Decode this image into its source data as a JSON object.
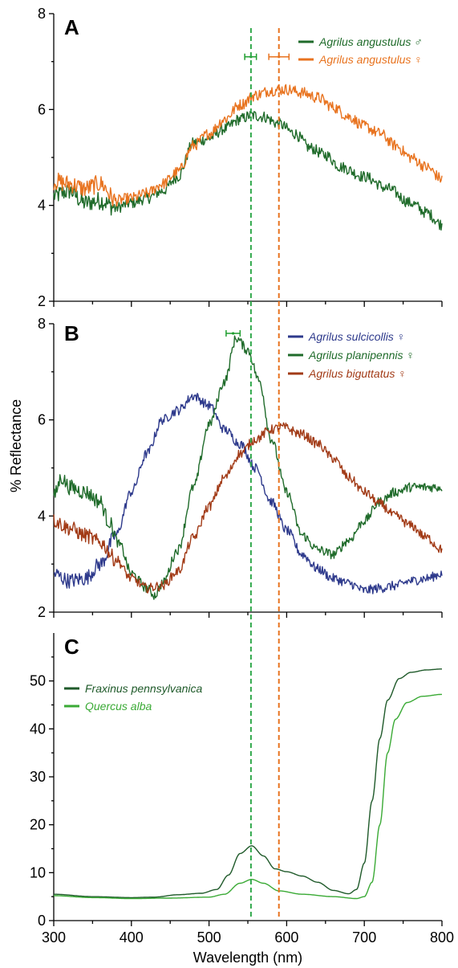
{
  "chart_data": [
    {
      "panel": "A",
      "type": "line",
      "xlim": [
        300,
        800
      ],
      "ylim": [
        2,
        8
      ],
      "yticks": [
        "2",
        "4",
        "6",
        "8"
      ],
      "noise": 0.12,
      "series": [
        {
          "name": "Agrilus angustulus ♂",
          "color": "#1f6b2a",
          "points": [
            [
              300,
              4.2
            ],
            [
              320,
              4.3
            ],
            [
              340,
              4.05
            ],
            [
              360,
              4.1
            ],
            [
              380,
              3.95
            ],
            [
              400,
              4.05
            ],
            [
              420,
              4.15
            ],
            [
              440,
              4.3
            ],
            [
              460,
              4.6
            ],
            [
              480,
              5.3
            ],
            [
              500,
              5.4
            ],
            [
              520,
              5.6
            ],
            [
              540,
              5.8
            ],
            [
              555,
              5.88
            ],
            [
              570,
              5.85
            ],
            [
              590,
              5.7
            ],
            [
              610,
              5.5
            ],
            [
              630,
              5.2
            ],
            [
              650,
              5.05
            ],
            [
              670,
              4.8
            ],
            [
              700,
              4.6
            ],
            [
              730,
              4.35
            ],
            [
              760,
              4.05
            ],
            [
              780,
              3.85
            ],
            [
              800,
              3.6
            ]
          ]
        },
        {
          "name": "Agrilus angustulus ♀",
          "color": "#e8731f",
          "points": [
            [
              300,
              4.5
            ],
            [
              320,
              4.45
            ],
            [
              340,
              4.35
            ],
            [
              360,
              4.45
            ],
            [
              380,
              4.1
            ],
            [
              400,
              4.15
            ],
            [
              420,
              4.25
            ],
            [
              440,
              4.45
            ],
            [
              460,
              4.7
            ],
            [
              480,
              5.25
            ],
            [
              500,
              5.5
            ],
            [
              520,
              5.8
            ],
            [
              540,
              6.1
            ],
            [
              560,
              6.3
            ],
            [
              580,
              6.4
            ],
            [
              600,
              6.42
            ],
            [
              620,
              6.35
            ],
            [
              640,
              6.25
            ],
            [
              660,
              6.05
            ],
            [
              680,
              5.85
            ],
            [
              700,
              5.65
            ],
            [
              720,
              5.5
            ],
            [
              740,
              5.25
            ],
            [
              760,
              5.0
            ],
            [
              780,
              4.8
            ],
            [
              800,
              4.55
            ]
          ]
        }
      ],
      "errorbars": [
        {
          "color": "#1f9e2f",
          "x": 554,
          "xmin": 546,
          "xmax": 561,
          "y": 7.1
        },
        {
          "color": "#e8731f",
          "x": 590,
          "xmin": 577,
          "xmax": 603,
          "y": 7.1
        }
      ]
    },
    {
      "panel": "B",
      "type": "line",
      "xlim": [
        300,
        800
      ],
      "ylim": [
        2,
        8
      ],
      "yticks": [
        "2",
        "4",
        "6",
        "8"
      ],
      "noise": 0.1,
      "series": [
        {
          "name": "Agrilus sulcicollis ♀",
          "color": "#2e3a8c",
          "points": [
            [
              300,
              2.8
            ],
            [
              320,
              2.65
            ],
            [
              340,
              2.7
            ],
            [
              360,
              3.0
            ],
            [
              380,
              3.6
            ],
            [
              400,
              4.5
            ],
            [
              420,
              5.3
            ],
            [
              440,
              6.0
            ],
            [
              460,
              6.2
            ],
            [
              480,
              6.5
            ],
            [
              500,
              6.3
            ],
            [
              520,
              5.8
            ],
            [
              540,
              5.5
            ],
            [
              560,
              5.0
            ],
            [
              580,
              4.3
            ],
            [
              600,
              3.7
            ],
            [
              620,
              3.2
            ],
            [
              640,
              2.9
            ],
            [
              660,
              2.7
            ],
            [
              680,
              2.6
            ],
            [
              700,
              2.45
            ],
            [
              720,
              2.5
            ],
            [
              740,
              2.55
            ],
            [
              760,
              2.65
            ],
            [
              780,
              2.7
            ],
            [
              800,
              2.8
            ]
          ]
        },
        {
          "name": "Agrilus planipennis ♀",
          "color": "#1f6b2a",
          "points": [
            [
              300,
              4.4
            ],
            [
              310,
              4.8
            ],
            [
              320,
              4.6
            ],
            [
              340,
              4.5
            ],
            [
              360,
              4.3
            ],
            [
              370,
              3.9
            ],
            [
              385,
              3.4
            ],
            [
              400,
              2.8
            ],
            [
              420,
              2.5
            ],
            [
              430,
              2.35
            ],
            [
              440,
              2.6
            ],
            [
              460,
              3.3
            ],
            [
              480,
              4.6
            ],
            [
              500,
              5.9
            ],
            [
              520,
              6.8
            ],
            [
              535,
              7.7
            ],
            [
              550,
              7.45
            ],
            [
              565,
              6.8
            ],
            [
              580,
              5.6
            ],
            [
              600,
              4.5
            ],
            [
              620,
              3.6
            ],
            [
              640,
              3.3
            ],
            [
              660,
              3.2
            ],
            [
              680,
              3.5
            ],
            [
              700,
              3.9
            ],
            [
              720,
              4.3
            ],
            [
              740,
              4.5
            ],
            [
              760,
              4.6
            ],
            [
              780,
              4.6
            ],
            [
              800,
              4.6
            ]
          ]
        },
        {
          "name": "Agrilus biguttatus ♀",
          "color": "#a23b17",
          "points": [
            [
              300,
              3.9
            ],
            [
              320,
              3.75
            ],
            [
              340,
              3.6
            ],
            [
              360,
              3.45
            ],
            [
              380,
              3.1
            ],
            [
              400,
              2.7
            ],
            [
              420,
              2.5
            ],
            [
              440,
              2.55
            ],
            [
              460,
              2.85
            ],
            [
              480,
              3.55
            ],
            [
              500,
              4.2
            ],
            [
              520,
              4.8
            ],
            [
              540,
              5.3
            ],
            [
              560,
              5.6
            ],
            [
              580,
              5.8
            ],
            [
              595,
              5.85
            ],
            [
              620,
              5.7
            ],
            [
              640,
              5.5
            ],
            [
              660,
              5.2
            ],
            [
              680,
              4.8
            ],
            [
              700,
              4.5
            ],
            [
              720,
              4.25
            ],
            [
              740,
              4.0
            ],
            [
              760,
              3.8
            ],
            [
              780,
              3.55
            ],
            [
              800,
              3.3
            ]
          ]
        }
      ],
      "errorbars": [
        {
          "color": "#1f9e2f",
          "x": 531,
          "xmin": 522,
          "xmax": 540,
          "y": 7.8
        }
      ]
    },
    {
      "panel": "C",
      "type": "line",
      "xlim": [
        300,
        800
      ],
      "ylim": [
        0,
        60
      ],
      "yticks": [
        "0",
        "10",
        "20",
        "30",
        "40",
        "50"
      ],
      "noise": 0,
      "xticks": [
        "300",
        "400",
        "500",
        "600",
        "700",
        "800"
      ],
      "xlabel": "Wavelength (nm)",
      "series": [
        {
          "name": "Fraxinus pennsylvanica",
          "color": "#1f5a2a",
          "points": [
            [
              300,
              5.5
            ],
            [
              350,
              5.0
            ],
            [
              400,
              4.8
            ],
            [
              430,
              4.9
            ],
            [
              460,
              5.4
            ],
            [
              490,
              5.7
            ],
            [
              510,
              6.5
            ],
            [
              525,
              9.5
            ],
            [
              540,
              14.0
            ],
            [
              555,
              15.6
            ],
            [
              570,
              13.5
            ],
            [
              585,
              10.8
            ],
            [
              600,
              10.2
            ],
            [
              620,
              9.3
            ],
            [
              640,
              8.0
            ],
            [
              660,
              6.3
            ],
            [
              680,
              5.6
            ],
            [
              690,
              6.5
            ],
            [
              700,
              12.0
            ],
            [
              710,
              25.0
            ],
            [
              720,
              38.0
            ],
            [
              730,
              46.0
            ],
            [
              745,
              50.5
            ],
            [
              760,
              51.8
            ],
            [
              780,
              52.3
            ],
            [
              800,
              52.5
            ]
          ]
        },
        {
          "name": "Quercus alba",
          "color": "#3aaa35",
          "points": [
            [
              300,
              5.2
            ],
            [
              350,
              4.8
            ],
            [
              400,
              4.6
            ],
            [
              450,
              4.7
            ],
            [
              500,
              4.9
            ],
            [
              520,
              5.5
            ],
            [
              540,
              7.8
            ],
            [
              555,
              8.6
            ],
            [
              570,
              7.8
            ],
            [
              590,
              6.2
            ],
            [
              620,
              5.5
            ],
            [
              660,
              5.0
            ],
            [
              690,
              4.6
            ],
            [
              700,
              5.0
            ],
            [
              710,
              8.0
            ],
            [
              720,
              20.0
            ],
            [
              730,
              35.0
            ],
            [
              740,
              42.0
            ],
            [
              755,
              45.5
            ],
            [
              775,
              46.8
            ],
            [
              800,
              47.2
            ]
          ]
        }
      ]
    }
  ],
  "ylabel": "% Reflectance",
  "reference_lines": [
    {
      "x": 554,
      "color": "#2fa84a"
    },
    {
      "x": 590,
      "color": "#e8731f"
    }
  ]
}
